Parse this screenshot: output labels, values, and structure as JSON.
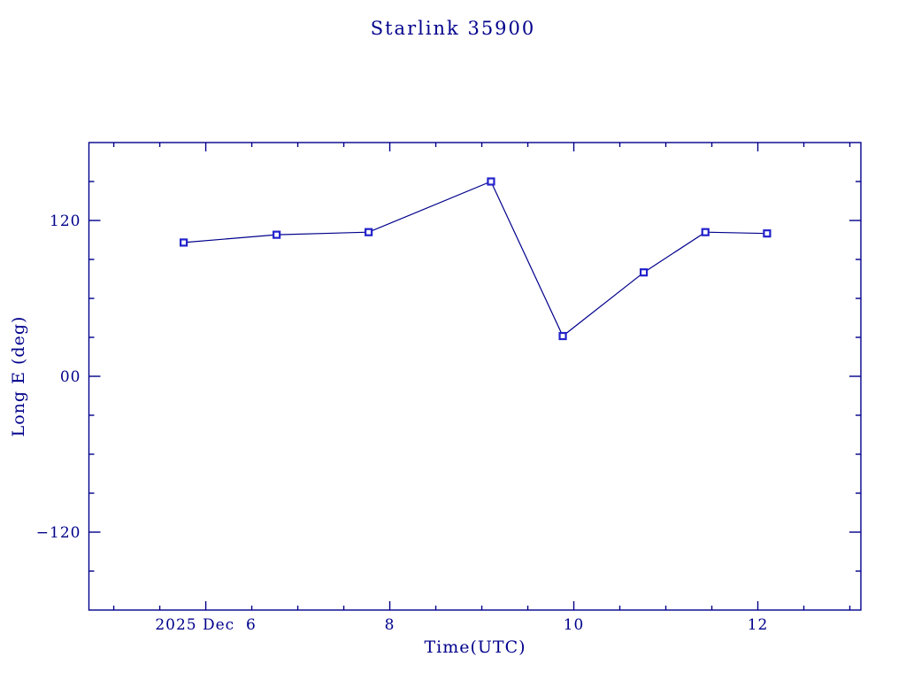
{
  "page": {
    "background_color": "#ffffff"
  },
  "chart_data": {
    "type": "line",
    "title": "Starlink 35900",
    "xlabel": "Time(UTC)",
    "ylabel": "Long E (deg)",
    "axis_color": "#00008b",
    "line_color": "#00008b",
    "marker_color": "#2222cc",
    "marker_shape": "open-square",
    "grid": false,
    "legend": "none",
    "xlim": [
      4.73,
      13.12
    ],
    "ylim": [
      -180,
      180
    ],
    "x_unit": "day of December 2025 (UTC)",
    "x_major_ticks": [
      {
        "value": 6,
        "label": "2025 Dec  6"
      },
      {
        "value": 8,
        "label": "8"
      },
      {
        "value": 10,
        "label": "10"
      },
      {
        "value": 12,
        "label": "12"
      }
    ],
    "x_minor_step": 0.5,
    "y_major_ticks": [
      {
        "value": 120,
        "label": "120"
      },
      {
        "value": 0,
        "label": "00"
      },
      {
        "value": -120,
        "label": "−120"
      }
    ],
    "y_minor_step": 30,
    "series": [
      {
        "name": "Starlink 35900 east longitude",
        "x": [
          5.76,
          6.77,
          7.77,
          9.1,
          9.88,
          10.76,
          11.43,
          12.1
        ],
        "y": [
          103,
          109,
          111,
          150,
          31,
          80,
          111,
          110
        ]
      }
    ]
  }
}
